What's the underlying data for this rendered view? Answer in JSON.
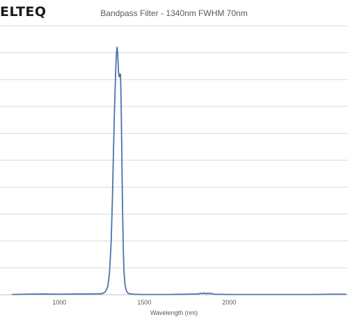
{
  "logo": {
    "text": "ELTEQ"
  },
  "chart_data": {
    "type": "line",
    "title": "Bandpass Filter - 1340nm FWHM 70nm",
    "xlabel": "Wavelength (nm)",
    "ylabel": "",
    "xlim": [
      650,
      2700
    ],
    "ylim": [
      0,
      100
    ],
    "x_ticks": [
      1000,
      1500,
      2000
    ],
    "y_gridlines": [
      0,
      10,
      20,
      30,
      40,
      50,
      60,
      70,
      80,
      90,
      100
    ],
    "grid": true,
    "legend": "none",
    "series": [
      {
        "color": "#4a74aa",
        "x": [
          720,
          800,
          900,
          1000,
          1100,
          1200,
          1250,
          1270,
          1285,
          1295,
          1305,
          1312,
          1318,
          1325,
          1332,
          1336,
          1340,
          1344,
          1348,
          1352,
          1356,
          1360,
          1364,
          1368,
          1372,
          1376,
          1380,
          1386,
          1392,
          1400,
          1410,
          1420,
          1440,
          1480,
          1550,
          1650,
          1750,
          1820,
          1835,
          1845,
          1855,
          1865,
          1875,
          1885,
          1895,
          1910,
          2000,
          2100,
          2200,
          2300,
          2400,
          2500,
          2600,
          2690
        ],
        "y": [
          0.1,
          0.2,
          0.3,
          0.2,
          0.3,
          0.3,
          0.4,
          1.0,
          3.0,
          8.0,
          20.0,
          35.0,
          52.0,
          70.0,
          84.0,
          90.0,
          92.0,
          89.0,
          83.0,
          81.0,
          82.0,
          82.0,
          70.0,
          50.0,
          32.0,
          18.0,
          9.0,
          4.0,
          2.0,
          0.8,
          0.4,
          0.3,
          0.2,
          0.1,
          0.1,
          0.1,
          0.2,
          0.3,
          0.6,
          0.4,
          0.7,
          0.3,
          0.6,
          0.4,
          0.5,
          0.2,
          0.1,
          0.1,
          0.1,
          0.1,
          0.1,
          0.1,
          0.2,
          0.2
        ]
      }
    ]
  }
}
